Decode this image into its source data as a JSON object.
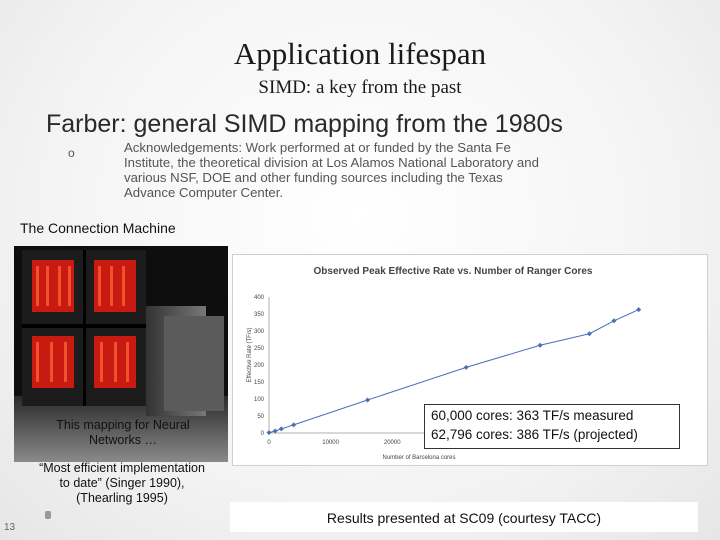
{
  "slide": {
    "title": "Application lifespan",
    "subtitle": "SIMD: a key from the past",
    "heading": "Farber: general SIMD mapping from the 1980s",
    "bullet_marker": "o",
    "acknowledgement_lines": [
      "Acknowledgements: Work performed at or funded by the Santa Fe",
      "Institute, the theoretical division at Los Alamos National Laboratory and",
      "various NSF, DOE and other funding sources including the Texas",
      "Advance Computer Center."
    ],
    "connection_machine_label": "The Connection Machine",
    "photo_caption_lines": [
      "This mapping for Neural",
      "Networks …"
    ],
    "quote_lines": [
      "“Most efficient implementation",
      "to date” (Singer 1990),",
      "(Thearling 1995)"
    ],
    "slide_number": "13",
    "results_text": "Results presented at SC09 (courtesy TACC)",
    "callout_lines": [
      "60,000 cores: 363 TF/s measured",
      "62,796 cores: 386 TF/s (projected)"
    ]
  },
  "chart_data": {
    "type": "line",
    "title": "Observed Peak Effective Rate vs. Number of Ranger Cores",
    "xlabel": "Number of Barcelona cores",
    "ylabel": "Effective Rate (TF/s)",
    "xlim": [
      0,
      62000
    ],
    "ylim": [
      0,
      400
    ],
    "x_ticks": [
      "0",
      "10000",
      "20000"
    ],
    "y_ticks": [
      "0",
      "50",
      "100",
      "150",
      "200",
      "250",
      "300",
      "350",
      "400"
    ],
    "grid": false,
    "series": [
      {
        "color": "#4a6fb5",
        "x": [
          0,
          1000,
          2000,
          4000,
          16000,
          32000,
          44000,
          52000,
          56000,
          60000
        ],
        "y": [
          1,
          6,
          12,
          24,
          97,
          193,
          258,
          292,
          330,
          363
        ]
      }
    ]
  },
  "colors": {
    "accent": "#4a6fb5",
    "photo_panel": "#d21a10"
  }
}
